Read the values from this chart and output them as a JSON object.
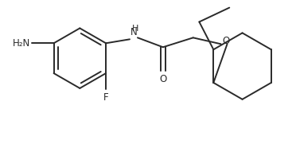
{
  "bg_color": "#ffffff",
  "line_color": "#2a2a2a",
  "line_width": 1.4,
  "font_size": 8.5,
  "figsize": [
    3.72,
    1.91
  ],
  "dpi": 100,
  "xlim": [
    0,
    372
  ],
  "ylim": [
    0,
    191
  ]
}
